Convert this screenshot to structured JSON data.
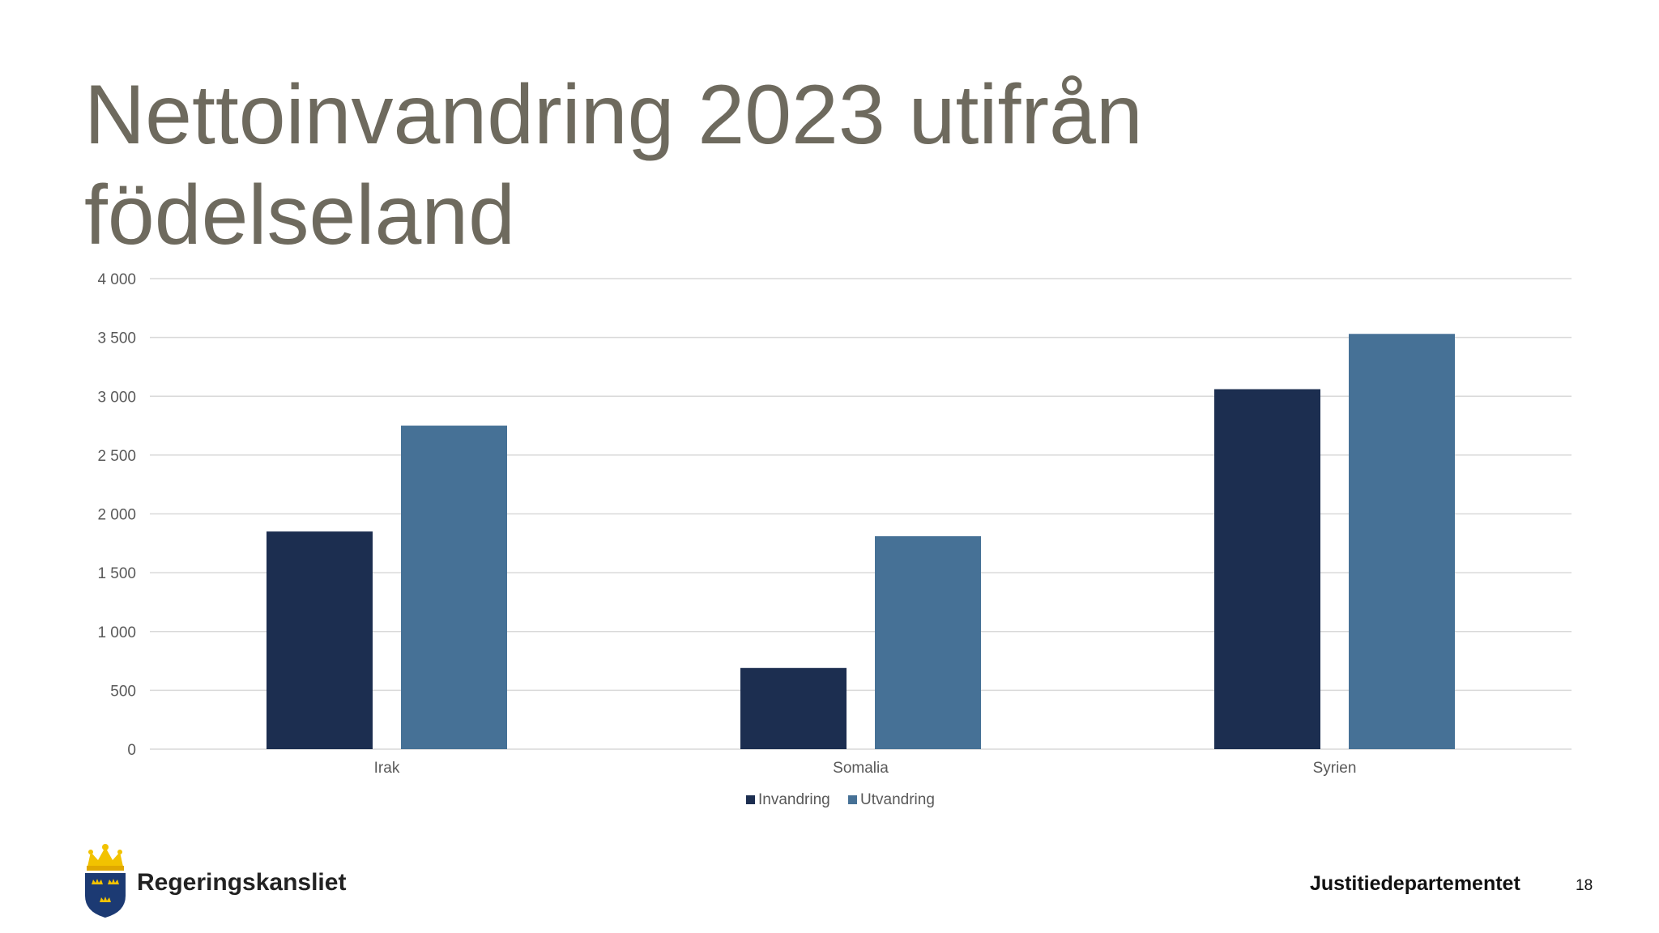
{
  "slide": {
    "title": "Nettoinvandring 2023 utifrån födelseland",
    "organization": "Regeringskansliet",
    "department": "Justitiedepartementet",
    "page_number": "18"
  },
  "colors": {
    "title": "#6e6a5e",
    "invandring": "#1c2e50",
    "utvandring": "#467196",
    "grid": "#d9d9d9",
    "axis_text": "#595959"
  },
  "chart_data": {
    "type": "bar",
    "categories": [
      "Irak",
      "Somalia",
      "Syrien"
    ],
    "series": [
      {
        "name": "Invandring",
        "values": [
          1850,
          690,
          3060
        ]
      },
      {
        "name": "Utvandring",
        "values": [
          2750,
          1810,
          3530
        ]
      }
    ],
    "ylim": [
      0,
      4000
    ],
    "yticks": [
      0,
      500,
      1000,
      1500,
      2000,
      2500,
      3000,
      3500,
      4000
    ],
    "ytick_labels": [
      "0",
      "500",
      "1 000",
      "1 500",
      "2 000",
      "2 500",
      "3 000",
      "3 500",
      "4 000"
    ],
    "grid": true,
    "legend": "bottom"
  }
}
